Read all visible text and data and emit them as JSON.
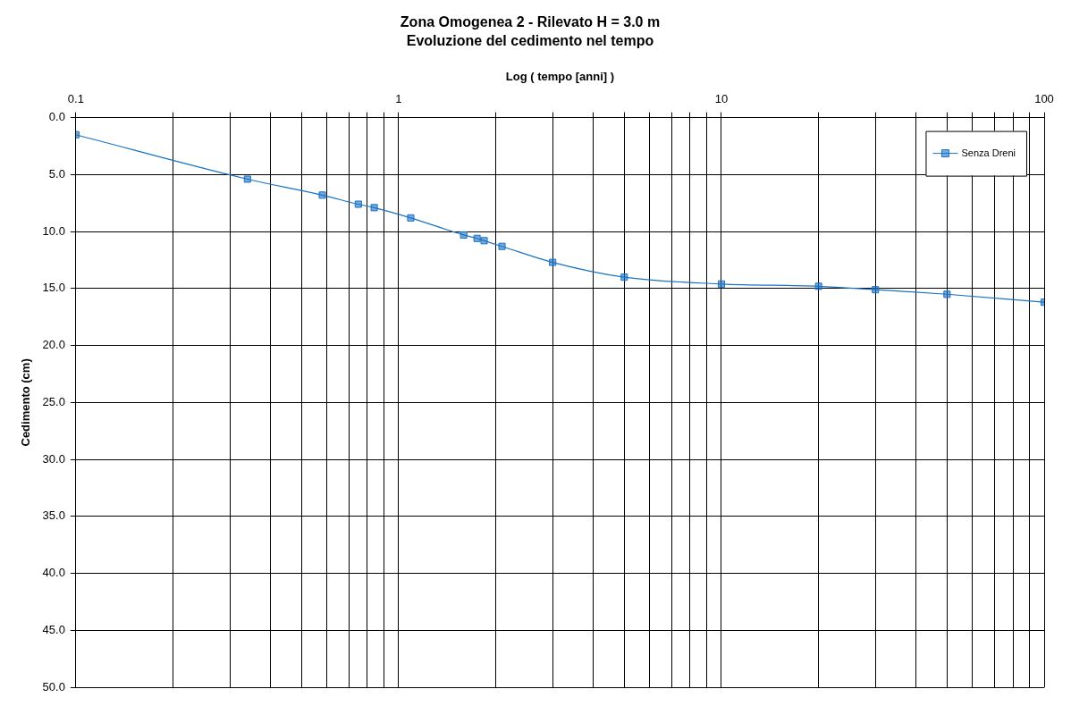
{
  "chart_data": {
    "type": "line",
    "title": "Zona Omogenea 2 - Rilevato H = 3.0 m",
    "subtitle": "Evoluzione del cedimento nel tempo",
    "xlabel": "Log ( tempo [anni] )",
    "ylabel": "Cedimento (cm)",
    "log": "x",
    "xlim": [
      0.1,
      100
    ],
    "xticks": [
      0.1,
      {
        "value": 0.2,
        "label": null
      },
      {
        "value": 0.3,
        "label": null
      },
      {
        "value": 0.4,
        "label": null
      },
      {
        "value": 0.5,
        "label": null
      },
      {
        "value": 0.6,
        "label": null
      },
      {
        "value": 0.7,
        "label": null
      },
      {
        "value": 0.8,
        "label": null
      },
      {
        "value": 0.9,
        "label": null
      },
      1,
      {
        "value": 2,
        "label": null
      },
      {
        "value": 3,
        "label": null
      },
      {
        "value": 4,
        "label": null
      },
      {
        "value": 5,
        "label": null
      },
      {
        "value": 6,
        "label": null
      },
      {
        "value": 7,
        "label": null
      },
      {
        "value": 8,
        "label": null
      },
      {
        "value": 9,
        "label": null
      },
      10,
      {
        "value": 20,
        "label": null
      },
      {
        "value": 30,
        "label": null
      },
      {
        "value": 40,
        "label": null
      },
      {
        "value": 50,
        "label": null
      },
      {
        "value": 60,
        "label": null
      },
      {
        "value": 70,
        "label": null
      },
      {
        "value": 80,
        "label": null
      },
      {
        "value": 90,
        "label": null
      },
      100
    ],
    "ylim": [
      50,
      0
    ],
    "yticks": [
      {
        "value": 0,
        "label": "0.0"
      },
      {
        "value": 5,
        "label": "5.0"
      },
      {
        "value": 10,
        "label": "10.0"
      },
      {
        "value": 15,
        "label": "15.0"
      },
      {
        "value": 20,
        "label": "20.0"
      },
      {
        "value": 25,
        "label": "25.0"
      },
      {
        "value": 30,
        "label": "30.0"
      },
      {
        "value": 35,
        "label": "35.0"
      },
      {
        "value": 40,
        "label": "40.0"
      },
      {
        "value": 45,
        "label": "45.0"
      },
      {
        "value": 50,
        "label": "50.0"
      }
    ],
    "grid": true,
    "legend": "top right",
    "marker": "square",
    "line_style": "solid",
    "series": [
      {
        "name": "Senza Dreni",
        "color": "#1a72c4",
        "x": [
          0.1,
          0.34,
          0.58,
          0.75,
          0.84,
          1.09,
          1.59,
          1.75,
          1.84,
          2.09,
          3.0,
          5.0,
          10,
          20,
          30,
          50,
          100
        ],
        "values": [
          1.5,
          5.4,
          6.8,
          7.6,
          7.9,
          8.8,
          10.3,
          10.6,
          10.8,
          11.3,
          12.7,
          14.0,
          14.6,
          14.8,
          15.1,
          15.5,
          16.2
        ]
      }
    ]
  }
}
